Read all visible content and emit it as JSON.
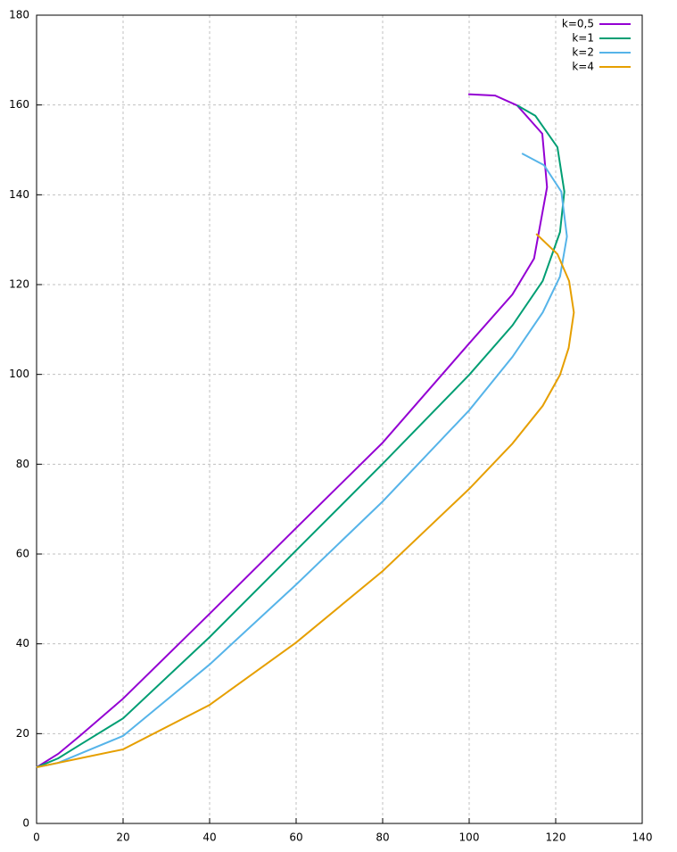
{
  "chart_data": {
    "type": "line",
    "xlim": [
      0,
      140
    ],
    "xticks": [
      0,
      20,
      40,
      60,
      80,
      100,
      120,
      140
    ],
    "ylim": [
      0,
      180
    ],
    "yticks": [
      0,
      20,
      40,
      60,
      80,
      100,
      120,
      140,
      160,
      180
    ],
    "grid": true,
    "legend": "top-right",
    "series": [
      {
        "name": "k=0,5",
        "color": "#9400d3",
        "x": [
          0,
          5,
          10,
          20,
          40,
          60,
          80,
          100,
          110,
          115,
          118,
          116.9,
          111.1,
          106,
          99.8
        ],
        "values": [
          12.5,
          15.5,
          19.5,
          27.8,
          46.7,
          65.8,
          84.8,
          106.9,
          117.8,
          125.8,
          141.7,
          153.6,
          159.9,
          162.1,
          162.4
        ]
      },
      {
        "name": "k=1",
        "color": "#009e73",
        "x": [
          0,
          5,
          10,
          20,
          40,
          60,
          80,
          100,
          110,
          117,
          121,
          122,
          120.4,
          115.3,
          111.1
        ],
        "values": [
          12.5,
          14.5,
          17.5,
          23.4,
          41.5,
          60.8,
          80.1,
          99.9,
          110.9,
          120.8,
          131.7,
          140.7,
          150.6,
          157.6,
          159.9
        ]
      },
      {
        "name": "k=2",
        "color": "#56b4e9",
        "x": [
          0,
          5,
          10,
          20,
          40,
          60,
          80,
          100,
          110,
          117,
          121,
          122.6,
          121.3,
          117.3,
          112.2
        ],
        "values": [
          12.5,
          13.5,
          15.5,
          19.5,
          35.4,
          53.2,
          71.7,
          92.0,
          103.9,
          113.8,
          121.8,
          130.7,
          140.7,
          146.6,
          149.2
        ]
      },
      {
        "name": "k=4",
        "color": "#e69f00",
        "x": [
          0,
          5,
          10,
          20,
          40,
          60,
          80,
          100,
          110,
          117,
          121,
          123,
          124.2,
          123.1,
          120.4,
          115.5
        ],
        "values": [
          12.5,
          13.5,
          14.5,
          16.5,
          26.4,
          40.3,
          56.2,
          74.5,
          84.6,
          93.0,
          99.9,
          105.9,
          113.8,
          120.8,
          126.8,
          131.3
        ]
      }
    ]
  }
}
